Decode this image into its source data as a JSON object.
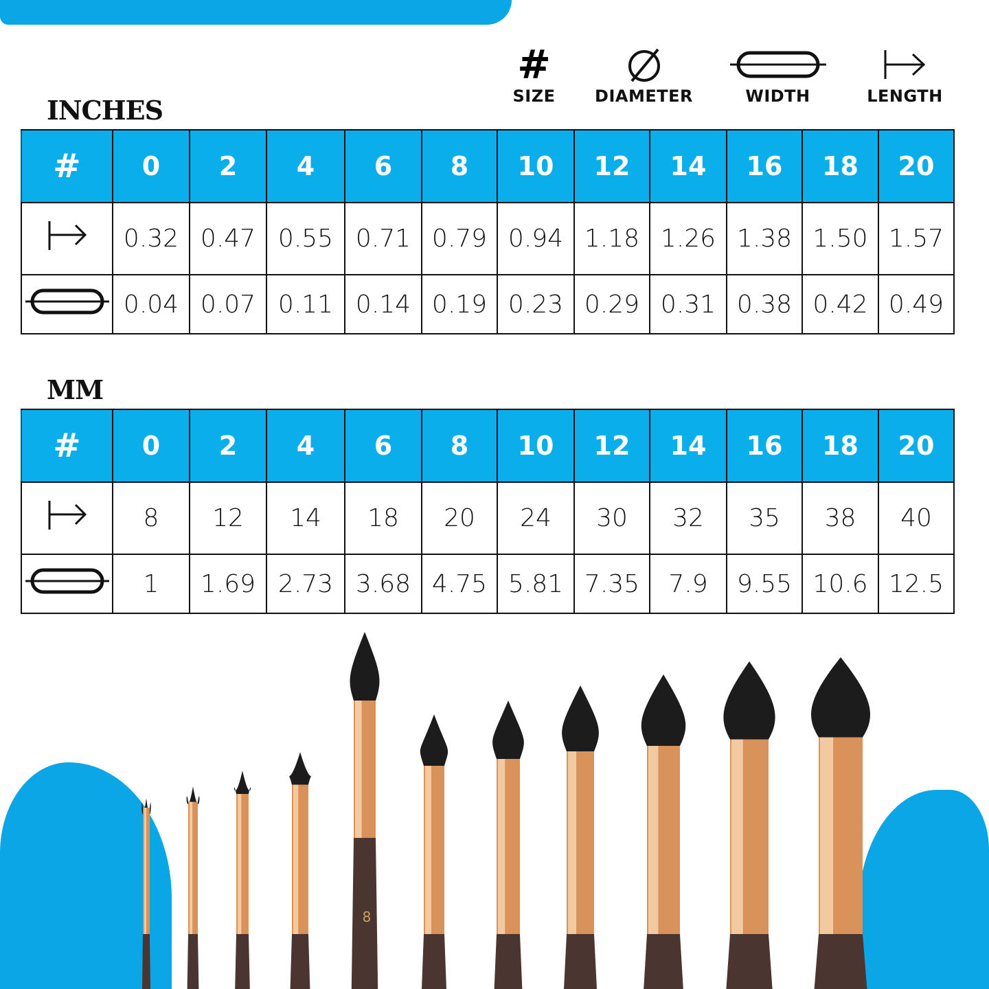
{
  "legend": [
    {
      "icon": "hash-icon",
      "label": "SIZE"
    },
    {
      "icon": "diameter-icon",
      "label": "DIAMETER"
    },
    {
      "icon": "width-icon",
      "label": "WIDTH"
    },
    {
      "icon": "length-icon",
      "label": "LENGTH"
    }
  ],
  "inches": {
    "title": "INCHES",
    "header_symbol": "#",
    "sizes": [
      "0",
      "2",
      "4",
      "6",
      "8",
      "10",
      "12",
      "14",
      "16",
      "18",
      "20"
    ],
    "length": [
      "0.32",
      "0.47",
      "0.55",
      "0.71",
      "0.79",
      "0.94",
      "1.18",
      "1.26",
      "1.38",
      "1.50",
      "1.57"
    ],
    "width": [
      "0.04",
      "0.07",
      "0.11",
      "0.14",
      "0.19",
      "0.23",
      "0.29",
      "0.31",
      "0.38",
      "0.42",
      "0.49"
    ]
  },
  "mm": {
    "title": "MM",
    "header_symbol": "#",
    "sizes": [
      "0",
      "2",
      "4",
      "6",
      "8",
      "10",
      "12",
      "14",
      "16",
      "18",
      "20"
    ],
    "length": [
      "8",
      "12",
      "14",
      "18",
      "20",
      "24",
      "30",
      "32",
      "35",
      "38",
      "40"
    ],
    "width": [
      "1",
      "1.69",
      "2.73",
      "3.68",
      "4.75",
      "5.81",
      "7.35",
      "7.9",
      "9.55",
      "10.6",
      "12.5"
    ]
  },
  "brush_handle_label": "8",
  "colors": {
    "accent": "#0aaeea",
    "splash": "#0aa6e6",
    "ferrule": "#d9925a",
    "handle": "#4a3530",
    "bristle": "#1c1c1c"
  }
}
